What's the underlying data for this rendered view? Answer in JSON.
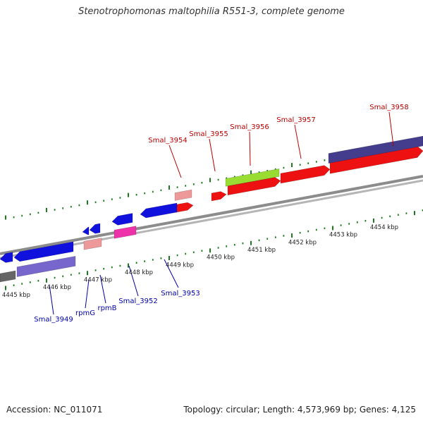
{
  "title": "Stenotrophomonas maltophilia R551-3, complete genome",
  "footer": {
    "accession": "Accession: NC_011071",
    "topology": "Topology: circular; Length: 4,573,969 bp; Genes: 4,125"
  },
  "colors": {
    "backbone": "#8c8c8c",
    "tick": "#1e7a1e",
    "forward_gene": "#ee1111",
    "forward_pale": "#ee9999",
    "forward_green": "#99dd33",
    "forward_purple": "#443c8c",
    "reverse_gene": "#1111dd",
    "reverse_pale": "#ee9999",
    "reverse_magenta": "#ee33aa",
    "reverse_purple": "#7766cc",
    "forward_label": "#bb0000",
    "reverse_label": "#0000aa"
  },
  "scale_labels": [
    "4445 kbp",
    "4446 kbp",
    "4447 kbp",
    "4448 kbp",
    "4449 kbp",
    "4450 kbp",
    "4451 kbp",
    "4452 kbp",
    "4453 kbp",
    "4454 kbp"
  ],
  "forward_labels": [
    "Smal_3954",
    "Smal_3955",
    "Smal_3956",
    "Smal_3957",
    "Smal_3958"
  ],
  "reverse_labels": [
    "Smal_3949",
    "rpmG",
    "rpmB",
    "Smal_3952",
    "Smal_3953"
  ]
}
